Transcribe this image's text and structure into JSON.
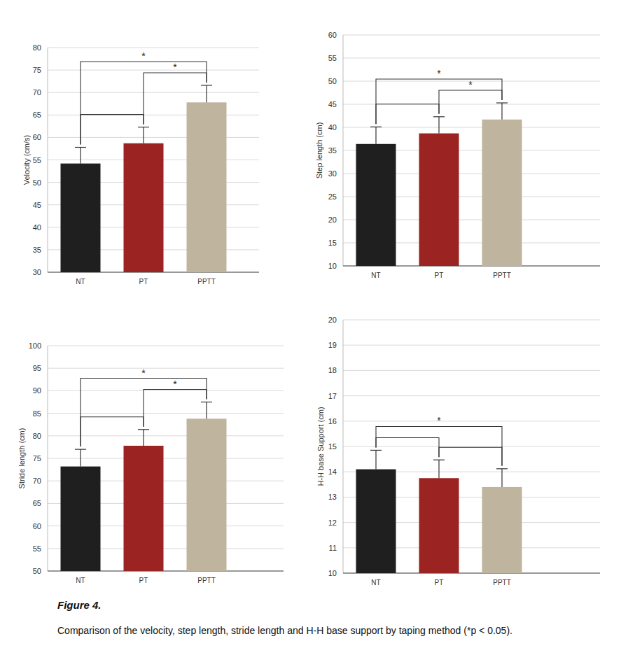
{
  "chart_data": [
    {
      "type": "bar",
      "y_label": "Velocity (cm/s)",
      "categories": [
        "NT",
        "PT",
        "PPTT"
      ],
      "values": [
        54.2,
        58.7,
        67.8
      ],
      "errors": [
        3.6,
        3.6,
        3.8
      ],
      "colors": [
        "#1f1f1f",
        "#9b2423",
        "#bfb49d"
      ],
      "ylim": [
        30,
        80
      ],
      "yticks": [
        30,
        35,
        40,
        45,
        50,
        55,
        60,
        65,
        70,
        75,
        80
      ],
      "grid": true,
      "comparisons": [
        {
          "pair": [
            0,
            1
          ]
        },
        {
          "pair": [
            1,
            2
          ],
          "label": "*"
        },
        {
          "pair": [
            0,
            2
          ],
          "label": "*"
        }
      ]
    },
    {
      "type": "bar",
      "y_label": "Step length (cm)",
      "categories": [
        "NT",
        "PT",
        "PPTT"
      ],
      "values": [
        36.4,
        38.7,
        41.7
      ],
      "errors": [
        3.7,
        3.6,
        3.6
      ],
      "colors": [
        "#1f1f1f",
        "#9b2423",
        "#bfb49d"
      ],
      "ylim": [
        10,
        60
      ],
      "yticks": [
        10,
        15,
        20,
        25,
        30,
        35,
        40,
        45,
        50,
        55,
        60
      ],
      "grid": true,
      "comparisons": [
        {
          "pair": [
            0,
            1
          ]
        },
        {
          "pair": [
            1,
            2
          ],
          "label": "*"
        },
        {
          "pair": [
            0,
            2
          ],
          "label": "*"
        }
      ]
    },
    {
      "type": "bar",
      "y_label": "Stride length (cm)",
      "categories": [
        "NT",
        "PT",
        "PPTT"
      ],
      "values": [
        73.2,
        77.8,
        83.8
      ],
      "errors": [
        3.8,
        3.6,
        3.7
      ],
      "colors": [
        "#1f1f1f",
        "#9b2423",
        "#bfb49d"
      ],
      "ylim": [
        50,
        100
      ],
      "yticks": [
        50,
        55,
        60,
        65,
        70,
        75,
        80,
        85,
        90,
        95,
        100
      ],
      "grid": true,
      "comparisons": [
        {
          "pair": [
            0,
            1
          ]
        },
        {
          "pair": [
            1,
            2
          ],
          "label": "*"
        },
        {
          "pair": [
            0,
            2
          ],
          "label": "*"
        }
      ]
    },
    {
      "type": "bar",
      "y_label": "H-H base Support (cm)",
      "categories": [
        "NT",
        "PT",
        "PPTT"
      ],
      "values": [
        14.1,
        13.75,
        13.4
      ],
      "errors": [
        0.75,
        0.72,
        0.72
      ],
      "colors": [
        "#1f1f1f",
        "#9b2423",
        "#bfb49d"
      ],
      "ylim": [
        10,
        20
      ],
      "yticks": [
        10,
        11,
        12,
        13,
        14,
        15,
        16,
        17,
        18,
        19,
        20
      ],
      "grid": true,
      "comparisons": [
        {
          "pair": [
            0,
            1
          ]
        },
        {
          "pair": [
            1,
            2
          ]
        },
        {
          "pair": [
            0,
            2
          ],
          "label": "*"
        }
      ]
    }
  ],
  "caption": {
    "label": "Figure 4.",
    "text": "Comparison of the velocity, step length, stride length and H-H base support by taping method (*p < 0.05)."
  }
}
